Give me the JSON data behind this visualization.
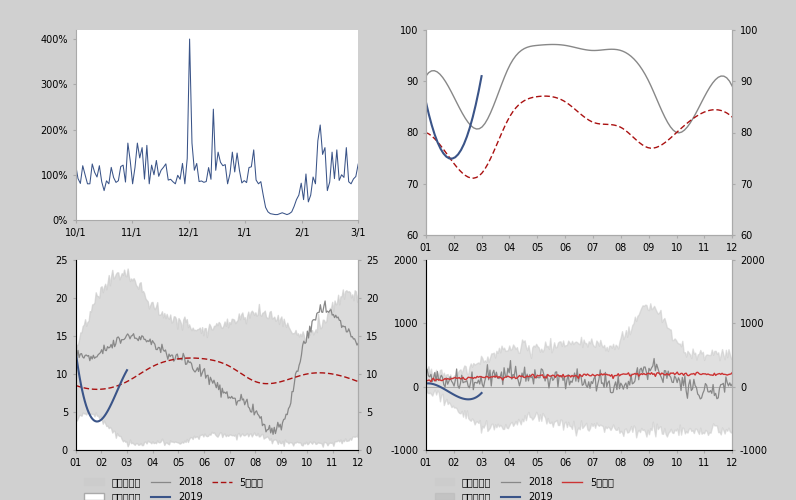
{
  "bg_color": "#d0d0d0",
  "panel_bg": "#ffffff",
  "panel1": {
    "xticks": [
      "10/1",
      "11/1",
      "12/1",
      "1/1",
      "2/1",
      "3/1"
    ],
    "yticks": [
      "0%",
      "100%",
      "200%",
      "300%",
      "400%"
    ],
    "yvals": [
      0,
      100,
      200,
      300,
      400
    ],
    "ylim": [
      0,
      420
    ],
    "line_color": "#3a5488",
    "line_width": 0.8
  },
  "panel2": {
    "xticks": [
      "01",
      "02",
      "03",
      "04",
      "05",
      "06",
      "07",
      "08",
      "09",
      "10",
      "11",
      "12"
    ],
    "ylim": [
      60,
      100
    ],
    "yticks": [
      60,
      70,
      80,
      90,
      100
    ],
    "line_2019_color": "#3a5488",
    "line_2018_color": "#888888",
    "line_5yr_color": "#aa1111"
  },
  "panel3": {
    "xticks": [
      "01",
      "02",
      "03",
      "04",
      "05",
      "06",
      "07",
      "08",
      "09",
      "10",
      "11",
      "12"
    ],
    "ylim": [
      0,
      25
    ],
    "yticks": [
      0,
      5,
      10,
      15,
      20,
      25
    ],
    "band_color": "#cccccc",
    "line_2018_color": "#888888",
    "line_2019_color": "#3a5488",
    "line_5yr_color": "#aa1111"
  },
  "panel4": {
    "xticks": [
      "01",
      "02",
      "03",
      "04",
      "05",
      "06",
      "07",
      "08",
      "09",
      "10",
      "11",
      "12"
    ],
    "ylim": [
      -1000,
      2000
    ],
    "yticks": [
      -1000,
      0,
      1000,
      2000
    ],
    "band_color": "#cccccc",
    "line_2018_color": "#888888",
    "line_2019_color": "#3a5488",
    "line_5yr_color": "#cc3333"
  }
}
